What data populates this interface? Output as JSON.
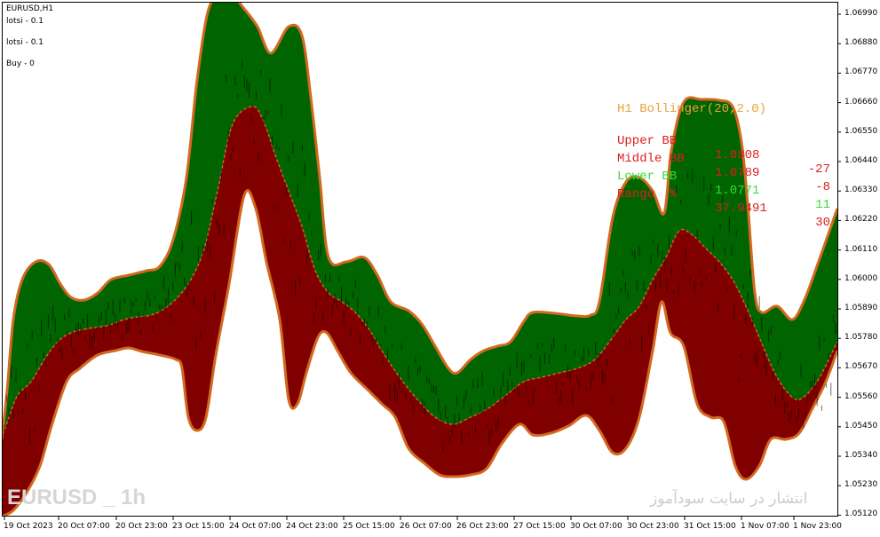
{
  "chart_window": {
    "symbol_title": "EURUSD,H1",
    "info_lines": [
      "lotsi - 0.1",
      "lotsi - 0.1",
      "Buy - 0"
    ],
    "y_axis_labels": [
      "1.06990",
      "1.06880",
      "1.06770",
      "1.06660",
      "1.06550",
      "1.06440",
      "1.06330",
      "1.06220",
      "1.06110",
      "1.06000",
      "1.05890",
      "1.05780",
      "1.05670",
      "1.05560",
      "1.05450",
      "1.05340",
      "1.05230",
      "1.05120"
    ],
    "x_axis_labels": [
      "19 Oct 2023",
      "20 Oct 07:00",
      "20 Oct 23:00",
      "23 Oct 15:00",
      "24 Oct 07:00",
      "24 Oct 23:00",
      "25 Oct 15:00",
      "26 Oct 07:00",
      "26 Oct 23:00",
      "27 Oct 15:00",
      "30 Oct 07:00",
      "30 Oct 23:00",
      "31 Oct 15:00",
      "1 Nov 07:00",
      "1 Nov 23:00"
    ],
    "watermark_left": "EURUSD _ 1h",
    "watermark_right": "انتشار در سایت سودآموز",
    "colors": {
      "upper_fill": "#006400",
      "lower_fill": "#800000",
      "band_edge": "#d2691e",
      "candles": "#000000",
      "background": "#ffffff"
    }
  },
  "bb_panel": {
    "title": "H1 Bollinger(20,2.0)",
    "title_color": "#e8a33a",
    "rows": [
      {
        "label": "Upper BB",
        "value": "1.0808",
        "change": "-27",
        "color": "#dc2020"
      },
      {
        "label": "Middle BB",
        "value": "1.0789",
        "change": "-8",
        "color": "#dc2020"
      },
      {
        "label": "Lower BB",
        "value": "1.0771",
        "change": "11",
        "color": "#33dd33"
      },
      {
        "label": "Range  %",
        "value": "37.9491",
        "change": "30",
        "color": "#dc2020"
      }
    ]
  }
}
